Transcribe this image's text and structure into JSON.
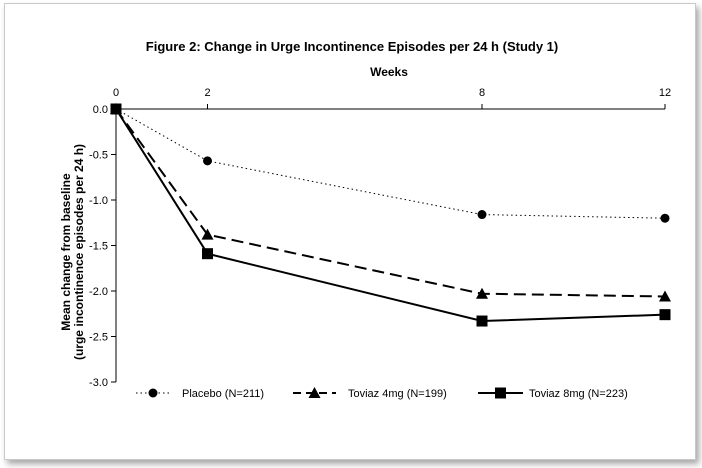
{
  "chart_data": {
    "type": "line",
    "title": "Figure 2: Change in Urge Incontinence Episodes per 24 h (Study 1)",
    "xlabel": "Weeks",
    "ylabel_line1": "Mean change from baseline",
    "ylabel_line2": "(urge incontinence episodes per 24 h)",
    "x_ticks": [
      0,
      2,
      8,
      12
    ],
    "x_tick_labels": [
      "0",
      "2",
      "8",
      "12"
    ],
    "xlim": [
      0,
      12
    ],
    "y_ticks": [
      0.0,
      -0.5,
      -1.0,
      -1.5,
      -2.0,
      -2.5,
      -3.0
    ],
    "y_tick_labels": [
      "0.0",
      "-0.5",
      "-1.0",
      "-1.5",
      "-2.0",
      "-2.5",
      "-3.0"
    ],
    "ylim": [
      -3.0,
      0.0
    ],
    "x_axis_position": "top",
    "grid": false,
    "legend_position": "bottom",
    "series": [
      {
        "name": "Placebo (N=211)",
        "line_style": "dotted",
        "marker": "circle",
        "x": [
          0,
          2,
          8,
          12
        ],
        "values": [
          0.0,
          -0.57,
          -1.16,
          -1.2
        ]
      },
      {
        "name": "Toviaz 4mg (N=199)",
        "line_style": "dashed",
        "marker": "triangle",
        "x": [
          0,
          2,
          8,
          12
        ],
        "values": [
          0.0,
          -1.38,
          -2.03,
          -2.06
        ]
      },
      {
        "name": "Toviaz 8mg (N=223)",
        "line_style": "solid",
        "marker": "square",
        "x": [
          0,
          2,
          8,
          12
        ],
        "values": [
          0.0,
          -1.59,
          -2.33,
          -2.26
        ]
      }
    ],
    "color": "#000000"
  }
}
